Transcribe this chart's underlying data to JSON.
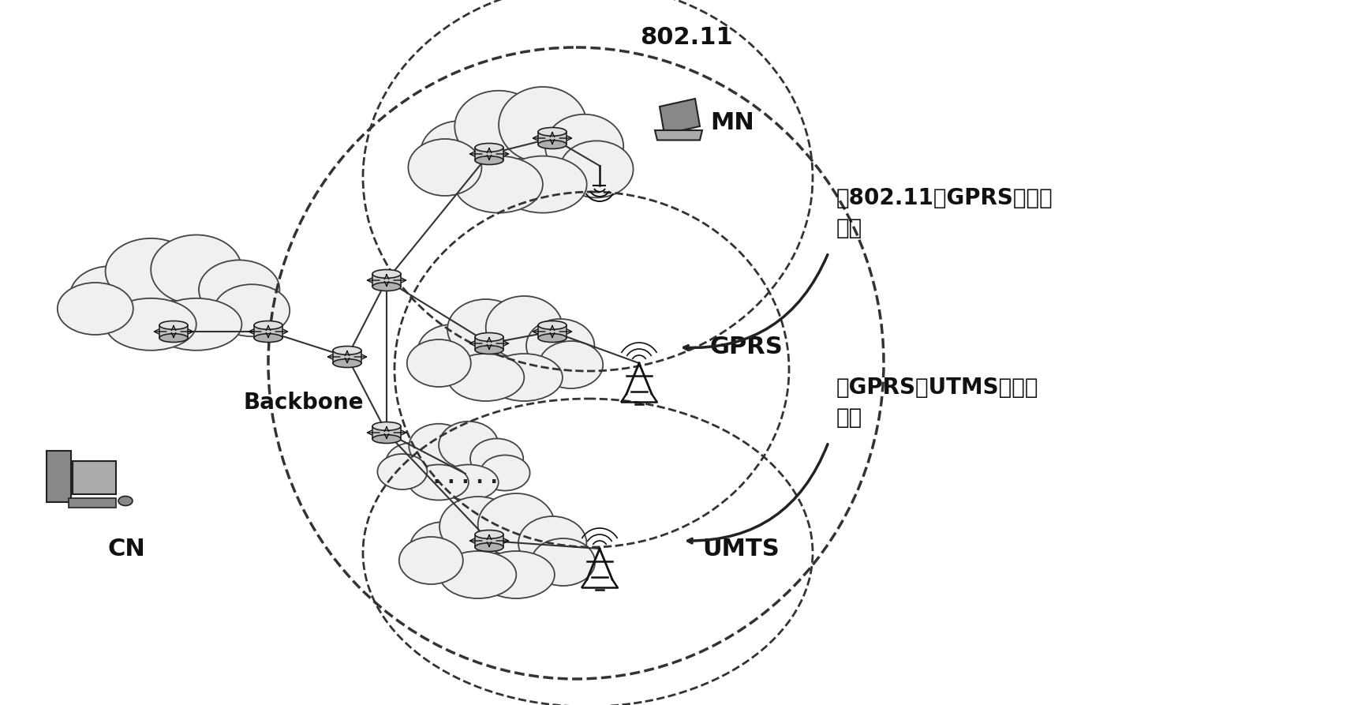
{
  "bg_color": "#ffffff",
  "labels": {
    "label_802_11": "802.11",
    "label_gprs": "GPRS",
    "label_umts": "UMTS",
    "label_mn": "MN",
    "label_cn": "CN",
    "label_backbone": "Backbone",
    "label_handoff1": "从802.11到GPRS的垂直\n切换",
    "label_handoff2": "从GPRS到UTMS的垂直\n切换"
  }
}
